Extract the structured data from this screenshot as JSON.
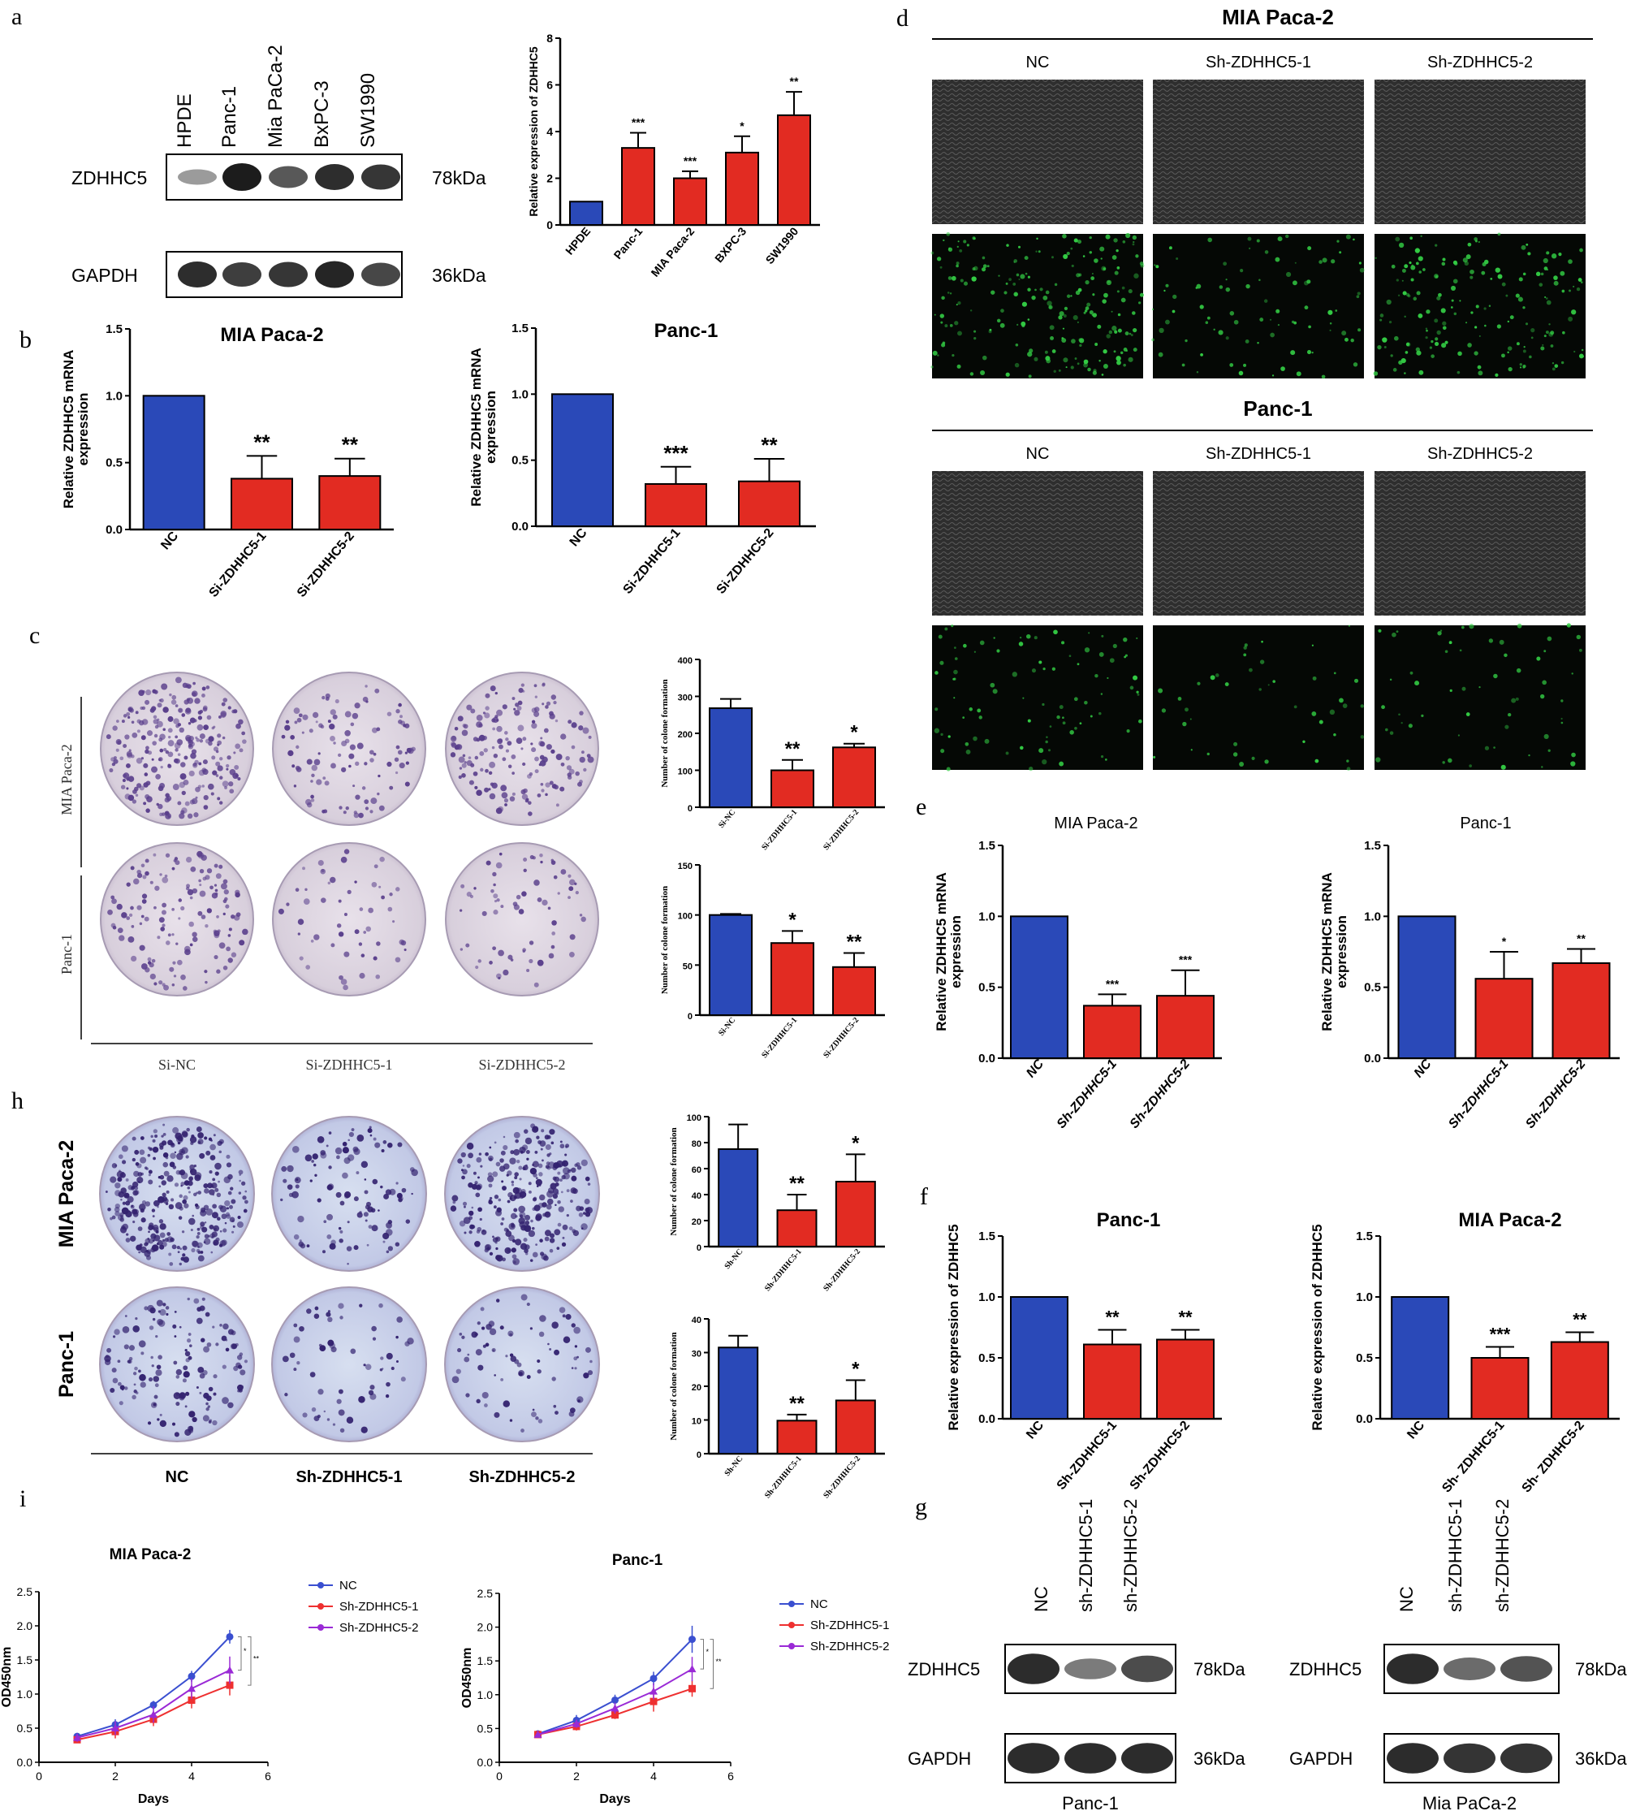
{
  "colors": {
    "control": "#2a49b8",
    "treat": "#e22b22",
    "blot": "#1c1c1c",
    "green": "#33cc44",
    "dark": "#111111",
    "grey": "#555555"
  },
  "labels": {
    "a": "a",
    "b": "b",
    "c": "c",
    "d": "d",
    "e": "e",
    "f": "f",
    "g": "g",
    "h": "h",
    "i": "i"
  },
  "panel_a": {
    "lanes": [
      "HPDE",
      "Panc-1",
      "Mia PaCa-2",
      "BxPC-3",
      "SW1990"
    ],
    "rows": [
      {
        "name": "ZDHHC5",
        "size": "78kDa",
        "band": [
          0.25,
          1,
          0.65,
          0.9,
          0.85
        ]
      },
      {
        "name": "GAPDH",
        "size": "36kDa",
        "band": [
          0.9,
          0.8,
          0.85,
          0.95,
          0.75
        ]
      }
    ]
  },
  "panel_d": {
    "groups": [
      {
        "title": "MIA Paca-2",
        "labels": [
          "NC",
          "Sh-ZDHHC5-1",
          "Sh-ZDHHC5-2"
        ]
      },
      {
        "title": "Panc-1",
        "labels": [
          "NC",
          "Sh-ZDHHC5-1",
          "Sh-ZDHHC5-2"
        ]
      }
    ]
  },
  "panel_c": {
    "rows": [
      "MIA Paca-2",
      "Panc-1"
    ],
    "cols": [
      "Si-NC",
      "Si-ZDHHC5-1",
      "Si-ZDHHC5-2"
    ]
  },
  "panel_h": {
    "rows": [
      "MIA Paca-2",
      "Panc-1"
    ],
    "cols": [
      "NC",
      "Sh-ZDHHC5-1",
      "Sh-ZDHHC5-2"
    ]
  },
  "panel_g": {
    "blots": [
      {
        "caption": "Panc-1",
        "lanes": [
          "NC",
          "sh-ZDHHC5-1",
          "sh-ZDHHC5-2"
        ],
        "rows": [
          {
            "name": "ZDHHC5",
            "size": "78kDa",
            "band": [
              0.9,
              0.4,
              0.7
            ]
          },
          {
            "name": "GAPDH",
            "size": "36kDa",
            "band": [
              0.9,
              0.9,
              0.9
            ]
          }
        ]
      },
      {
        "caption": "Mia PaCa-2",
        "lanes": [
          "NC",
          "sh-ZDHHC5-1",
          "sh-ZDHHC5-2"
        ],
        "rows": [
          {
            "name": "ZDHHC5",
            "size": "78kDa",
            "band": [
              0.9,
              0.5,
              0.65
            ]
          },
          {
            "name": "GAPDH",
            "size": "36kDa",
            "band": [
              0.9,
              0.85,
              0.85
            ]
          }
        ]
      }
    ]
  },
  "chart_data": [
    {
      "panel": "a",
      "type": "bar",
      "ylabel": "Relative expression of ZDHHC5",
      "ylim": [
        0,
        8
      ],
      "ticks": [
        0,
        2,
        4,
        6,
        8
      ],
      "categories": [
        "HPDE",
        "Panc-1",
        "MIA Paca-2",
        "BXPC-3",
        "SW1990"
      ],
      "values": [
        1.0,
        3.3,
        2.0,
        3.1,
        4.7
      ],
      "errors": [
        0,
        0.65,
        0.3,
        0.7,
        1.0
      ],
      "sig": [
        "",
        "***",
        "***",
        "*",
        "**"
      ]
    },
    {
      "panel": "b1",
      "type": "bar",
      "title": "MIA Paca-2",
      "ylabel": "Relative ZDHHC5 mRNA expression",
      "ylim": [
        0,
        1.5
      ],
      "ticks": [
        "0.0",
        "0.5",
        "1.0",
        "1.5"
      ],
      "categories": [
        "NC",
        "Si-ZDHHC5-1",
        "Si-ZDHHC5-2"
      ],
      "values": [
        1.0,
        0.38,
        0.4
      ],
      "errors": [
        0,
        0.17,
        0.13
      ],
      "sig": [
        "",
        "**",
        "**"
      ]
    },
    {
      "panel": "b2",
      "type": "bar",
      "title": "Panc-1",
      "ylabel": "Relative ZDHHC5 mRNA expression",
      "ylim": [
        0,
        1.5
      ],
      "ticks": [
        "0.0",
        "0.5",
        "1.0",
        "1.5"
      ],
      "categories": [
        "NC",
        "Si-ZDHHC5-1",
        "Si-ZDHHC5-2"
      ],
      "values": [
        1.0,
        0.32,
        0.34
      ],
      "errors": [
        0,
        0.13,
        0.17
      ],
      "sig": [
        "",
        "***",
        "**"
      ]
    },
    {
      "panel": "c1",
      "type": "bar",
      "ylabel": "Number of colone formation",
      "ylim": [
        0,
        400
      ],
      "ticks": [
        0,
        100,
        200,
        300,
        400
      ],
      "categories": [
        "Si-NC",
        "Si-ZDHHC5-1",
        "Si-ZDHHC5-2"
      ],
      "values": [
        268,
        100,
        162
      ],
      "errors": [
        25,
        28,
        10
      ],
      "sig": [
        "",
        "**",
        "*"
      ]
    },
    {
      "panel": "c2",
      "type": "bar",
      "ylabel": "Number of colone formation",
      "ylim": [
        0,
        150
      ],
      "ticks": [
        0,
        50,
        100,
        150
      ],
      "categories": [
        "Si-NC",
        "Si-ZDHHC5-1",
        "Si-ZDHHC5-2"
      ],
      "values": [
        100,
        72,
        48
      ],
      "errors": [
        1,
        12,
        14
      ],
      "sig": [
        "",
        "*",
        "**"
      ]
    },
    {
      "panel": "h1",
      "type": "bar",
      "ylabel": "Number of colone formation",
      "ylim": [
        0,
        100
      ],
      "ticks": [
        0,
        20,
        40,
        60,
        80,
        100
      ],
      "categories": [
        "Sh-NC",
        "Sh-ZDHHC5-1",
        "Sh-ZDHHC5-2"
      ],
      "values": [
        75,
        28,
        50
      ],
      "errors": [
        19,
        12,
        21
      ],
      "sig": [
        "",
        "**",
        "*"
      ]
    },
    {
      "panel": "h2",
      "type": "bar",
      "ylabel": "Number of colone formation",
      "ylim": [
        0,
        40
      ],
      "ticks": [
        0,
        10,
        20,
        30,
        40
      ],
      "categories": [
        "Sh-NC",
        "Sh-ZDHHC5-1",
        "Sh-ZDHHC5-2"
      ],
      "values": [
        31.5,
        9.8,
        15.8
      ],
      "errors": [
        3.5,
        1.8,
        6
      ],
      "sig": [
        "",
        "**",
        "*"
      ]
    },
    {
      "panel": "e1",
      "type": "bar",
      "title": "MIA Paca-2",
      "ylabel": "Relative ZDHHC5 mRNA expression",
      "ylim": [
        0,
        1.5
      ],
      "ticks": [
        "0.0",
        "0.5",
        "1.0",
        "1.5"
      ],
      "categories": [
        "NC",
        "Sh-ZDHHC5-1",
        "Sh-ZDHHC5-2"
      ],
      "values": [
        1.0,
        0.37,
        0.44
      ],
      "errors": [
        0,
        0.08,
        0.18
      ],
      "sig": [
        "",
        "***",
        "***"
      ]
    },
    {
      "panel": "e2",
      "type": "bar",
      "title": "Panc-1",
      "ylabel": "Relative ZDHHC5 mRNA expression",
      "ylim": [
        0,
        1.5
      ],
      "ticks": [
        "0.0",
        "0.5",
        "1.0",
        "1.5"
      ],
      "categories": [
        "NC",
        "Sh-ZDHHC5-1",
        "Sh-ZDHHC5-2"
      ],
      "values": [
        1.0,
        0.56,
        0.67
      ],
      "errors": [
        0,
        0.19,
        0.1
      ],
      "sig": [
        "",
        "*",
        "**"
      ]
    },
    {
      "panel": "f1",
      "type": "bar",
      "title": "Panc-1",
      "ylabel": "Relative expression of ZDHHC5",
      "ylim": [
        0,
        1.5
      ],
      "ticks": [
        "0.0",
        "0.5",
        "1.0",
        "1.5"
      ],
      "categories": [
        "NC",
        "Sh-ZDHHC5-1",
        "Sh-ZDHHC5-2"
      ],
      "values": [
        1.0,
        0.61,
        0.65
      ],
      "errors": [
        0,
        0.12,
        0.08
      ],
      "sig": [
        "",
        "**",
        "**"
      ]
    },
    {
      "panel": "f2",
      "type": "bar",
      "title": "MIA Paca-2",
      "ylabel": "Relative expression of ZDHHC5",
      "ylim": [
        0,
        1.5
      ],
      "ticks": [
        "0.0",
        "0.5",
        "1.0",
        "1.5"
      ],
      "categories": [
        "NC",
        "Sh- ZDHHC5-1",
        "Sh- ZDHHC5-2"
      ],
      "values": [
        1.0,
        0.5,
        0.63
      ],
      "errors": [
        0,
        0.09,
        0.08
      ],
      "sig": [
        "",
        "***",
        "**"
      ]
    },
    {
      "panel": "i1",
      "type": "line",
      "title": "MIA Paca-2",
      "xlabel": "Days",
      "ylabel": "OD450nm",
      "xlim": [
        0,
        6
      ],
      "ylim": [
        0,
        2.5
      ],
      "xticks": [
        0,
        2,
        4,
        6
      ],
      "yticks": [
        "0.0",
        "0.5",
        "1.0",
        "1.5",
        "2.0",
        "2.5"
      ],
      "x": [
        1,
        2,
        3,
        4,
        5
      ],
      "series": [
        {
          "name": "NC",
          "values": [
            0.38,
            0.55,
            0.84,
            1.26,
            1.84
          ],
          "errors": [
            0.05,
            0.08,
            0.06,
            0.08,
            0.1
          ]
        },
        {
          "name": "Sh-ZDHHC5-1",
          "values": [
            0.33,
            0.45,
            0.63,
            0.91,
            1.13
          ],
          "errors": [
            0.05,
            0.1,
            0.1,
            0.12,
            0.15
          ]
        },
        {
          "name": "Sh-ZDHHC5-2",
          "values": [
            0.36,
            0.5,
            0.7,
            1.08,
            1.35
          ],
          "errors": [
            0.06,
            0.1,
            0.12,
            0.15,
            0.2
          ]
        }
      ],
      "sig": [
        "*",
        "**"
      ]
    },
    {
      "panel": "i2",
      "type": "line",
      "title": "Panc-1",
      "xlabel": "Days",
      "ylabel": "OD450nm",
      "xlim": [
        0,
        6
      ],
      "ylim": [
        0,
        2.5
      ],
      "xticks": [
        0,
        2,
        4,
        6
      ],
      "yticks": [
        "0.0",
        "0.5",
        "1.0",
        "1.5",
        "2.0",
        "2.5"
      ],
      "x": [
        1,
        2,
        3,
        4,
        5
      ],
      "series": [
        {
          "name": "NC",
          "values": [
            0.42,
            0.62,
            0.92,
            1.24,
            1.82
          ],
          "errors": [
            0.04,
            0.08,
            0.08,
            0.1,
            0.2
          ]
        },
        {
          "name": "Sh-ZDHHC5-1",
          "values": [
            0.41,
            0.53,
            0.7,
            0.9,
            1.09
          ],
          "errors": [
            0.04,
            0.06,
            0.06,
            0.15,
            0.12
          ]
        },
        {
          "name": "Sh-ZDHHC5-2",
          "values": [
            0.41,
            0.57,
            0.8,
            1.05,
            1.38
          ],
          "errors": [
            0.04,
            0.06,
            0.08,
            0.12,
            0.18
          ]
        }
      ],
      "sig": [
        "*",
        "**"
      ]
    }
  ]
}
